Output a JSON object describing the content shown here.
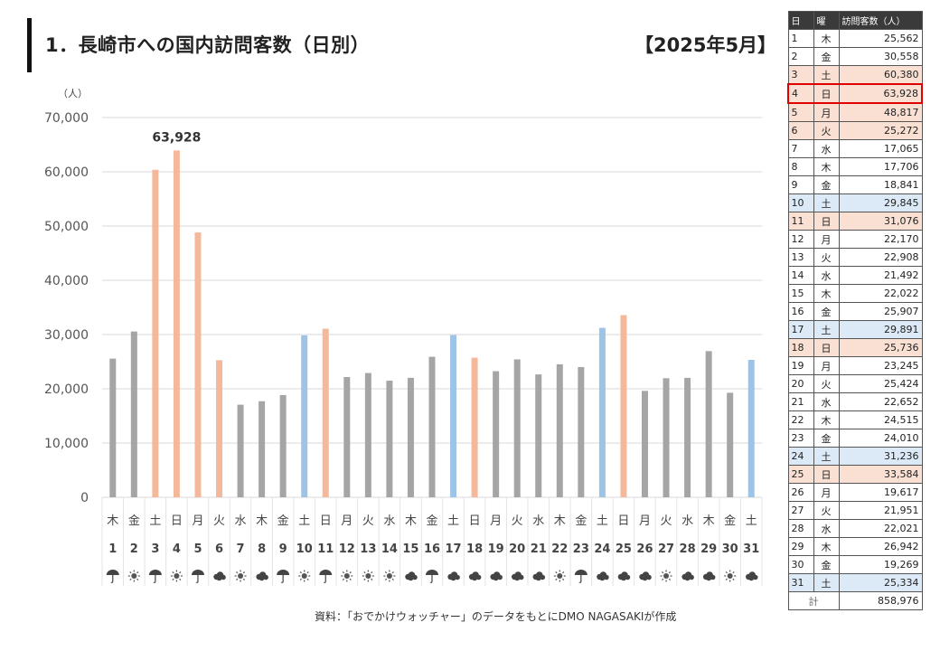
{
  "header": {
    "title": "1．長崎市への国内訪問客数（日別）",
    "period": "【2025年5月】"
  },
  "source_note": "資料：「おでかけウォッチャー」のデータをもとにDMO NAGASAKIが作成",
  "colors": {
    "weekday": "#a5a5a5",
    "saturday": "#9dc3e6",
    "sunday_holiday": "#f4b99a",
    "highlight_border": "#e00000",
    "table_header_bg": "#3a3a3a"
  },
  "chart_data": {
    "type": "bar",
    "y_unit_label": "（人）",
    "ylim": [
      0,
      70000
    ],
    "y_ticks": [
      "0",
      "10,000",
      "20,000",
      "30,000",
      "40,000",
      "50,000",
      "60,000",
      "70,000"
    ],
    "grid": true,
    "peak_label": "63,928",
    "peak_index": 3,
    "days": [
      "1",
      "2",
      "3",
      "4",
      "5",
      "6",
      "7",
      "8",
      "9",
      "10",
      "11",
      "12",
      "13",
      "14",
      "15",
      "16",
      "17",
      "18",
      "19",
      "20",
      "21",
      "22",
      "23",
      "24",
      "25",
      "26",
      "27",
      "28",
      "29",
      "30",
      "31"
    ],
    "weekdays": [
      "木",
      "金",
      "土",
      "日",
      "月",
      "火",
      "水",
      "木",
      "金",
      "土",
      "日",
      "月",
      "火",
      "水",
      "木",
      "金",
      "土",
      "日",
      "月",
      "火",
      "水",
      "木",
      "金",
      "土",
      "日",
      "月",
      "火",
      "水",
      "木",
      "金",
      "土"
    ],
    "values": [
      25562,
      30558,
      60380,
      63928,
      48817,
      25272,
      17065,
      17706,
      18841,
      29845,
      31076,
      22170,
      22908,
      21492,
      22022,
      25907,
      29891,
      25736,
      23245,
      25424,
      22652,
      24515,
      24010,
      31236,
      33584,
      19617,
      21951,
      22021,
      26942,
      19269,
      25334
    ],
    "categories": [
      "weekday",
      "weekday",
      "holiday",
      "holiday",
      "holiday",
      "holiday",
      "weekday",
      "weekday",
      "weekday",
      "saturday",
      "holiday",
      "weekday",
      "weekday",
      "weekday",
      "weekday",
      "weekday",
      "saturday",
      "holiday",
      "weekday",
      "weekday",
      "weekday",
      "weekday",
      "weekday",
      "saturday",
      "holiday",
      "weekday",
      "weekday",
      "weekday",
      "weekday",
      "weekday",
      "saturday"
    ],
    "weather": [
      "rain",
      "sun",
      "rain",
      "sun",
      "rain",
      "cloud",
      "sun",
      "cloud",
      "rain",
      "sun",
      "rain",
      "sun",
      "sun",
      "sun",
      "cloud",
      "rain",
      "cloud",
      "cloud",
      "cloud",
      "cloud",
      "cloud",
      "sun",
      "rain",
      "cloud",
      "cloud",
      "cloud",
      "sun",
      "cloud",
      "cloud",
      "sun",
      "cloud"
    ]
  },
  "table": {
    "headers": [
      "日",
      "曜",
      "訪問客数（人）"
    ],
    "rows_values": [
      "25,562",
      "30,558",
      "60,380",
      "63,928",
      "48,817",
      "25,272",
      "17,065",
      "17,706",
      "18,841",
      "29,845",
      "31,076",
      "22,170",
      "22,908",
      "21,492",
      "22,022",
      "25,907",
      "29,891",
      "25,736",
      "23,245",
      "25,424",
      "22,652",
      "24,515",
      "24,010",
      "31,236",
      "33,584",
      "19,617",
      "21,951",
      "22,021",
      "26,942",
      "19,269",
      "25,334"
    ],
    "row_styles": [
      "",
      "",
      "sun",
      "sun",
      "sun",
      "sun",
      "",
      "",
      "",
      "sat",
      "sun",
      "",
      "",
      "",
      "",
      "",
      "sat",
      "sun",
      "",
      "",
      "",
      "",
      "",
      "sat",
      "sun",
      "",
      "",
      "",
      "",
      "",
      "sat"
    ],
    "highlight_row": 3,
    "total_label": "計",
    "total_value": "858,976"
  }
}
